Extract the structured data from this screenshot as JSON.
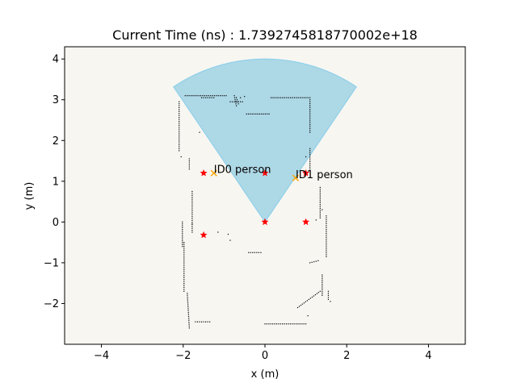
{
  "chart_data": {
    "type": "scatter",
    "title": "Current Time (ns) : 1.7392745818770002e+18",
    "xlabel": "x (m)",
    "ylabel": "y (m)",
    "xlim": [
      -4.9,
      4.9
    ],
    "ylim": [
      -3.0,
      4.3
    ],
    "xticks": [
      "−4",
      "−2",
      "0",
      "2",
      "4"
    ],
    "xtick_values": [
      -4,
      -2,
      0,
      2,
      4
    ],
    "yticks": [
      "−2",
      "−1",
      "0",
      "1",
      "2",
      "3",
      "4"
    ],
    "ytick_values": [
      -2,
      -1,
      0,
      1,
      2,
      3,
      4
    ],
    "background_color": "#f7f6f1",
    "sector": {
      "center": [
        0,
        0
      ],
      "radius": 4.0,
      "theta_start_deg": 56,
      "theta_end_deg": 124,
      "fill": "#add8e6",
      "edge": "#87ceeb"
    },
    "map_points": {
      "color": "#000000",
      "segments": [
        [
          -1.95,
          3.1,
          -0.95,
          3.1
        ],
        [
          -2.1,
          2.95,
          -2.1,
          1.75
        ],
        [
          -1.85,
          1.55,
          -1.85,
          1.3
        ],
        [
          -1.78,
          0.75,
          -1.78,
          -0.25
        ],
        [
          -2.02,
          0.0,
          -2.02,
          -0.6
        ],
        [
          -1.98,
          -0.5,
          -1.98,
          -1.7
        ],
        [
          -1.9,
          -1.75,
          -1.85,
          -2.6
        ],
        [
          -1.7,
          -2.45,
          -1.35,
          -2.45
        ],
        [
          -0.75,
          3.1,
          -0.7,
          2.85
        ],
        [
          -0.45,
          2.65,
          0.1,
          2.65
        ],
        [
          0.15,
          3.05,
          1.1,
          3.05
        ],
        [
          1.1,
          3.0,
          1.1,
          2.2
        ],
        [
          1.1,
          1.8,
          1.1,
          1.3
        ],
        [
          1.35,
          0.85,
          1.35,
          0.1
        ],
        [
          1.5,
          0.15,
          1.5,
          -0.85
        ],
        [
          1.3,
          -0.95,
          1.1,
          -1.0
        ],
        [
          1.4,
          -1.3,
          1.4,
          -1.8
        ],
        [
          1.55,
          -1.7,
          1.55,
          -1.9
        ],
        [
          0.8,
          -2.1,
          1.35,
          -1.7
        ],
        [
          0.0,
          -2.5,
          1.0,
          -2.5
        ],
        [
          -0.4,
          -0.75,
          -0.1,
          -0.75
        ],
        [
          -1.55,
          3.05,
          -1.25,
          3.05
        ],
        [
          -0.7,
          3.05,
          -0.65,
          2.9
        ],
        [
          -0.85,
          2.95,
          -0.55,
          2.95
        ]
      ],
      "dots": [
        [
          -2.05,
          1.6
        ],
        [
          -1.6,
          2.2
        ],
        [
          -0.85,
          -0.45
        ],
        [
          -1.15,
          -0.25
        ],
        [
          -0.9,
          -0.3
        ],
        [
          -0.6,
          3.05
        ],
        [
          -0.5,
          3.08
        ],
        [
          1.0,
          1.6
        ],
        [
          0.95,
          1.25
        ],
        [
          1.25,
          0.05
        ],
        [
          1.4,
          0.3
        ],
        [
          -1.78,
          -0.05
        ],
        [
          1.6,
          -1.95
        ],
        [
          1.05,
          -2.3
        ]
      ]
    },
    "markers": {
      "red_star": {
        "color": "#ff0000",
        "x": [
          -1.5,
          0.0,
          1.0,
          0.0,
          1.0,
          -1.5
        ],
        "y": [
          1.2,
          1.2,
          1.2,
          0.0,
          0.0,
          -0.32
        ]
      },
      "orange_x": {
        "color": "#ffa500",
        "x": [
          -1.25,
          0.75
        ],
        "y": [
          1.2,
          1.08
        ]
      }
    },
    "annotations": [
      {
        "text": "ID0 person",
        "x": -1.25,
        "y": 1.2
      },
      {
        "text": "ID1 person",
        "x": 0.75,
        "y": 1.08
      }
    ]
  }
}
